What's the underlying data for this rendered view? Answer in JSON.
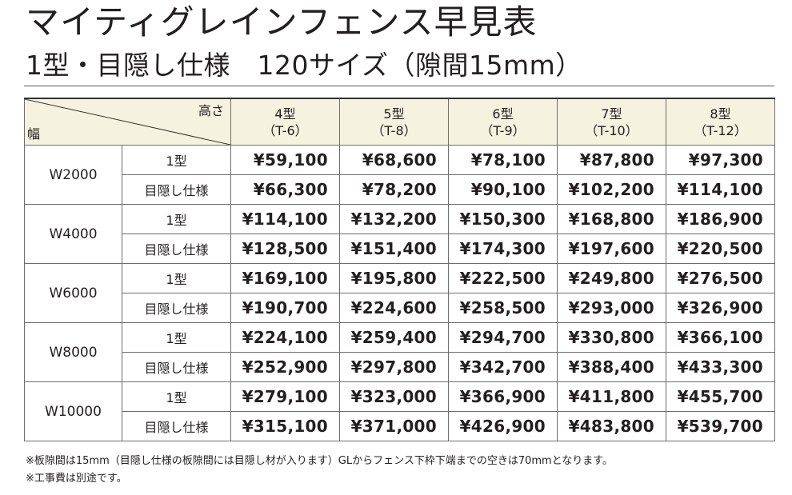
{
  "header": {
    "title": "マイティグレインフェンス早見表",
    "subtitle": "1型・目隠し仕様　120サイズ（隙間15mm）"
  },
  "table": {
    "corner": {
      "height_label": "高さ",
      "width_label": "幅"
    },
    "columns": [
      {
        "type": "4型",
        "code": "（T-6）"
      },
      {
        "type": "5型",
        "code": "（T-8）"
      },
      {
        "type": "6型",
        "code": "（T-9）"
      },
      {
        "type": "7型",
        "code": "（T-10）"
      },
      {
        "type": "8型",
        "code": "（T-12）"
      }
    ],
    "groups": [
      {
        "width": "W2000",
        "rows": [
          {
            "spec": "1型",
            "prices": [
              "¥59,100",
              "¥68,600",
              "¥78,100",
              "¥87,800",
              "¥97,300"
            ]
          },
          {
            "spec": "目隠し仕様",
            "prices": [
              "¥66,300",
              "¥78,200",
              "¥90,100",
              "¥102,200",
              "¥114,100"
            ]
          }
        ]
      },
      {
        "width": "W4000",
        "rows": [
          {
            "spec": "1型",
            "prices": [
              "¥114,100",
              "¥132,200",
              "¥150,300",
              "¥168,800",
              "¥186,900"
            ]
          },
          {
            "spec": "目隠し仕様",
            "prices": [
              "¥128,500",
              "¥151,400",
              "¥174,300",
              "¥197,600",
              "¥220,500"
            ]
          }
        ]
      },
      {
        "width": "W6000",
        "rows": [
          {
            "spec": "1型",
            "prices": [
              "¥169,100",
              "¥195,800",
              "¥222,500",
              "¥249,800",
              "¥276,500"
            ]
          },
          {
            "spec": "目隠し仕様",
            "prices": [
              "¥190,700",
              "¥224,600",
              "¥258,500",
              "¥293,000",
              "¥326,900"
            ]
          }
        ]
      },
      {
        "width": "W8000",
        "rows": [
          {
            "spec": "1型",
            "prices": [
              "¥224,100",
              "¥259,400",
              "¥294,700",
              "¥330,800",
              "¥366,100"
            ]
          },
          {
            "spec": "目隠し仕様",
            "prices": [
              "¥252,900",
              "¥297,800",
              "¥342,700",
              "¥388,400",
              "¥433,300"
            ]
          }
        ]
      },
      {
        "width": "W10000",
        "rows": [
          {
            "spec": "1型",
            "prices": [
              "¥279,100",
              "¥323,000",
              "¥366,900",
              "¥411,800",
              "¥455,700"
            ]
          },
          {
            "spec": "目隠し仕様",
            "prices": [
              "¥315,100",
              "¥371,000",
              "¥426,900",
              "¥483,800",
              "¥539,700"
            ]
          }
        ]
      }
    ]
  },
  "notes": [
    "※板隙間は15mm（目隠し仕様の板隙間には目隠し材が入ります）GLからフェンス下枠下端までの空きは70mmとなります。",
    "※工事費は別途です。"
  ],
  "colors": {
    "header_bg": "#f5f2df",
    "border": "#6d6d6d",
    "text": "#231f20"
  }
}
